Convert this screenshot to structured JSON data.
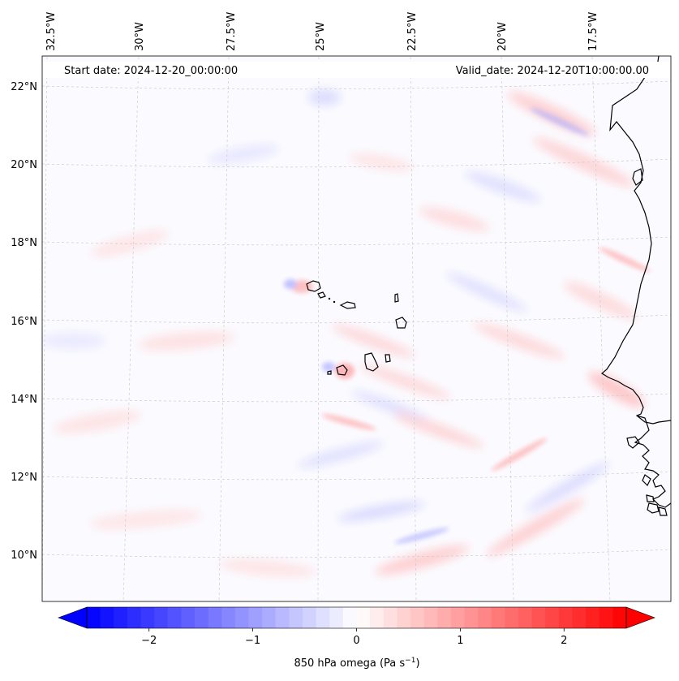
{
  "map": {
    "start_date_text": "Start date: 2024-12-20_00:00:00",
    "valid_date_text": "Valid_date: 2024-12-20T10:00:00.00",
    "lon_labels": [
      "32.5°W",
      "30°W",
      "27.5°W",
      "25°W",
      "22.5°W",
      "20°W",
      "17.5°W"
    ],
    "lat_labels": [
      "22°N",
      "20°N",
      "18°N",
      "16°N",
      "14°N",
      "12°N",
      "10°N"
    ],
    "colorbar": {
      "ticks": [
        "−2",
        "−1",
        "0",
        "1",
        "2"
      ],
      "tick_values": [
        -2,
        -1,
        0,
        1,
        2
      ],
      "vmin": -2.6,
      "vmax": 2.6,
      "label_main": "850 hPa omega (Pa s",
      "label_sup": "−1",
      "label_close": ")",
      "colors": {
        "low": "#0000ff",
        "mid": "#ffffff",
        "high": "#ff0000"
      }
    },
    "colors": {
      "coast": "#000000",
      "grid": "#cccccc",
      "ocean_bg": "#fbfbff"
    }
  }
}
